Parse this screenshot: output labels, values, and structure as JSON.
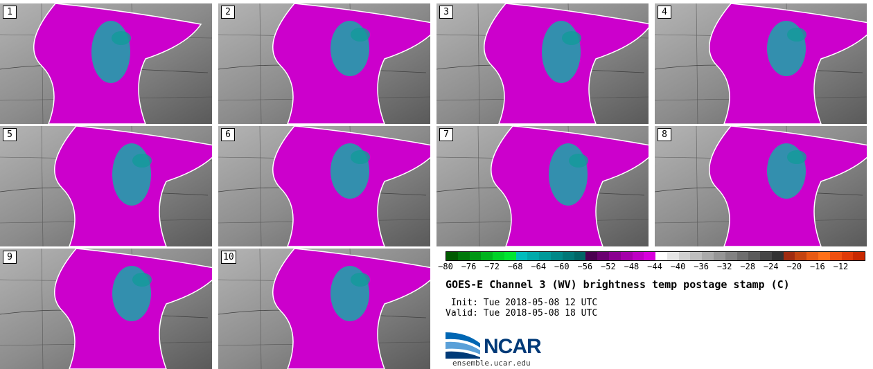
{
  "members": [
    "1",
    "2",
    "3",
    "4",
    "5",
    "6",
    "7",
    "8",
    "9",
    "10"
  ],
  "colorbar": {
    "colors": [
      "#005a00",
      "#00780a",
      "#009614",
      "#00b41e",
      "#00d228",
      "#00e632",
      "#00bcbc",
      "#00aaaa",
      "#009999",
      "#008888",
      "#007777",
      "#006666",
      "#4a0050",
      "#6a0070",
      "#8a0090",
      "#a400aa",
      "#be00c4",
      "#d800dc",
      "#ffffff",
      "#e6e6e6",
      "#d0d0d0",
      "#bebebe",
      "#aaaaaa",
      "#969696",
      "#828282",
      "#6e6e6e",
      "#5a5a5a",
      "#464646",
      "#323232",
      "#a02c10",
      "#c44410",
      "#e85a12",
      "#ff7018",
      "#f05010",
      "#e03a08",
      "#c82800"
    ],
    "ticks": [
      "−80",
      "−76",
      "−72",
      "−68",
      "−64",
      "−60",
      "−56",
      "−52",
      "−48",
      "−44",
      "−40",
      "−36",
      "−32",
      "−28",
      "−24",
      "−20",
      "−16",
      "−12"
    ]
  },
  "title": "GOES-E Channel 3 (WV) brightness temp postage stamp (C)",
  "init": " Init: Tue 2018-05-08 12 UTC",
  "valid": "Valid: Tue 2018-05-08 18 UTC",
  "logo": {
    "name": "NCAR",
    "url": "ensemble.ucar.edu"
  }
}
